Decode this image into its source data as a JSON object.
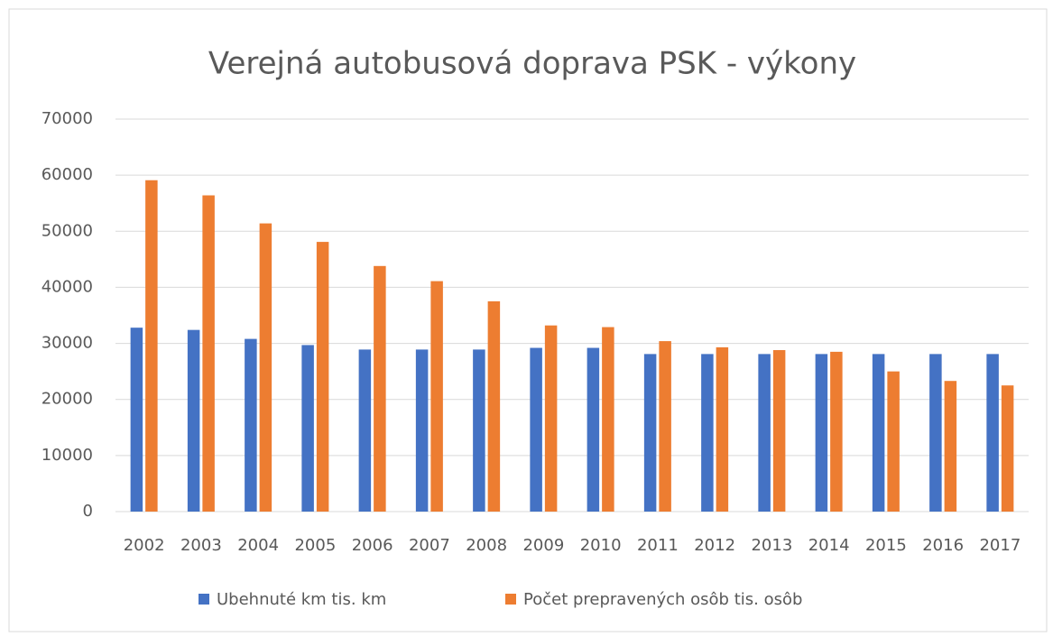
{
  "chart_data": {
    "type": "bar",
    "title": "Verejná autobusová doprava PSK - výkony",
    "categories": [
      "2002",
      "2003",
      "2004",
      "2005",
      "2006",
      "2007",
      "2008",
      "2009",
      "2010",
      "2011",
      "2012",
      "2013",
      "2014",
      "2015",
      "2016",
      "2017"
    ],
    "series": [
      {
        "name": "Ubehnuté km tis. km",
        "color": "#4472c4",
        "values": [
          32800,
          32400,
          30800,
          29700,
          28900,
          28900,
          28900,
          29200,
          29200,
          28100,
          28100,
          28100,
          28100,
          28100,
          28100,
          28100
        ]
      },
      {
        "name": "Počet prepravených osôb tis. osôb",
        "color": "#ed7d31",
        "values": [
          59100,
          56400,
          51400,
          48100,
          43800,
          41100,
          37500,
          33200,
          32900,
          30400,
          29300,
          28800,
          28500,
          25000,
          23300,
          22500
        ]
      }
    ],
    "ylim": [
      0,
      70000
    ],
    "yticks": [
      0,
      10000,
      20000,
      30000,
      40000,
      50000,
      60000,
      70000
    ],
    "grid": true,
    "legend": "bottom"
  }
}
